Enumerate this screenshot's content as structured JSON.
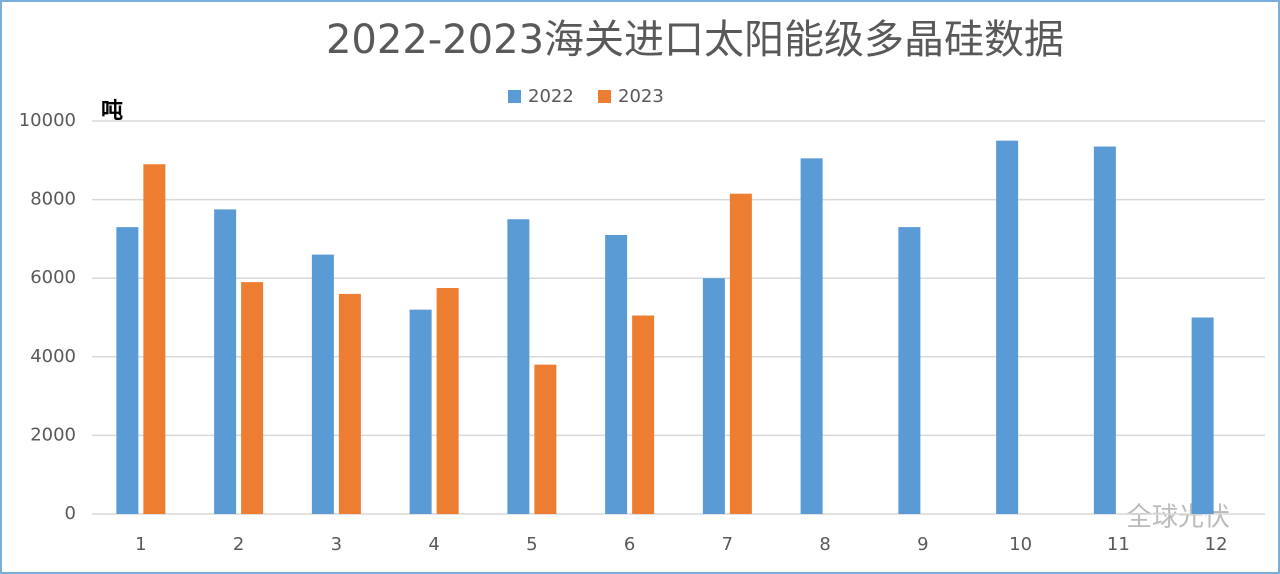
{
  "chart_data": {
    "type": "bar",
    "title": "2022-2023海关进口太阳能级多晶硅数据",
    "unit_label": "吨",
    "watermark": "全球光伏",
    "categories": [
      "1",
      "2",
      "3",
      "4",
      "5",
      "6",
      "7",
      "8",
      "9",
      "10",
      "11",
      "12"
    ],
    "series": [
      {
        "name": "2022",
        "color": "#5b9bd5",
        "values": [
          7300,
          7750,
          6600,
          5200,
          7500,
          7100,
          6000,
          9050,
          7300,
          9500,
          9350,
          5000
        ]
      },
      {
        "name": "2023",
        "color": "#ed7d31",
        "values": [
          8900,
          5900,
          5600,
          5750,
          3800,
          5050,
          8150,
          null,
          null,
          null,
          null,
          null
        ]
      }
    ],
    "ylim": [
      0,
      10000
    ],
    "yticks": [
      0,
      2000,
      4000,
      6000,
      8000,
      10000
    ],
    "grid": true
  }
}
